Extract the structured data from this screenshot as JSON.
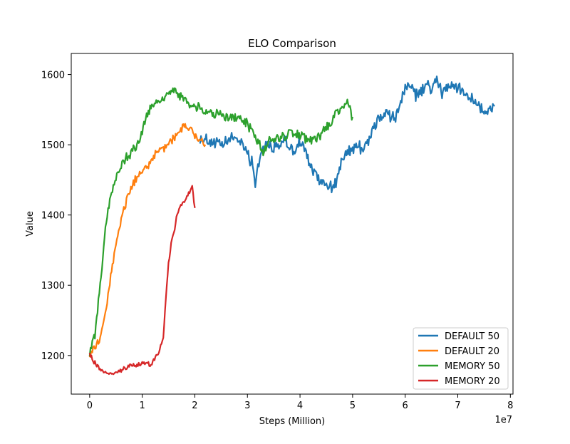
{
  "chart_data": {
    "type": "line",
    "title": "ELO Comparison",
    "xlabel": "Steps (Million)",
    "ylabel": "Value",
    "x_offset_label": "1e7",
    "xlim": [
      -0.35,
      8.05
    ],
    "ylim": [
      1145,
      1630
    ],
    "xticks": [
      0,
      1,
      2,
      3,
      4,
      5,
      6,
      7,
      8
    ],
    "yticks": [
      1200,
      1300,
      1400,
      1500,
      1600
    ],
    "grid": false,
    "legend_position": "lower-right",
    "series": [
      {
        "name": "DEFAULT 50",
        "color": "#1f77b4",
        "points": [
          [
            2.1,
            1510
          ],
          [
            2.3,
            1505
          ],
          [
            2.5,
            1498
          ],
          [
            2.7,
            1510
          ],
          [
            2.9,
            1505
          ],
          [
            3.0,
            1490
          ],
          [
            3.1,
            1470
          ],
          [
            3.15,
            1445
          ],
          [
            3.2,
            1470
          ],
          [
            3.3,
            1500
          ],
          [
            3.5,
            1495
          ],
          [
            3.7,
            1505
          ],
          [
            3.9,
            1490
          ],
          [
            4.0,
            1505
          ],
          [
            4.1,
            1490
          ],
          [
            4.2,
            1470
          ],
          [
            4.3,
            1455
          ],
          [
            4.4,
            1450
          ],
          [
            4.5,
            1445
          ],
          [
            4.6,
            1440
          ],
          [
            4.7,
            1450
          ],
          [
            4.8,
            1475
          ],
          [
            4.9,
            1490
          ],
          [
            5.0,
            1495
          ],
          [
            5.1,
            1500
          ],
          [
            5.2,
            1495
          ],
          [
            5.3,
            1505
          ],
          [
            5.4,
            1525
          ],
          [
            5.5,
            1535
          ],
          [
            5.6,
            1545
          ],
          [
            5.7,
            1540
          ],
          [
            5.8,
            1535
          ],
          [
            5.9,
            1560
          ],
          [
            6.0,
            1580
          ],
          [
            6.1,
            1585
          ],
          [
            6.2,
            1570
          ],
          [
            6.3,
            1575
          ],
          [
            6.4,
            1585
          ],
          [
            6.5,
            1580
          ],
          [
            6.6,
            1590
          ],
          [
            6.7,
            1575
          ],
          [
            6.8,
            1580
          ],
          [
            6.9,
            1585
          ],
          [
            7.0,
            1580
          ],
          [
            7.1,
            1575
          ],
          [
            7.2,
            1570
          ],
          [
            7.3,
            1565
          ],
          [
            7.4,
            1560
          ],
          [
            7.5,
            1545
          ],
          [
            7.6,
            1548
          ],
          [
            7.7,
            1555
          ]
        ]
      },
      {
        "name": "DEFAULT 20",
        "color": "#ff7f0e",
        "points": [
          [
            0.0,
            1200
          ],
          [
            0.1,
            1212
          ],
          [
            0.2,
            1225
          ],
          [
            0.3,
            1260
          ],
          [
            0.4,
            1310
          ],
          [
            0.5,
            1360
          ],
          [
            0.6,
            1395
          ],
          [
            0.7,
            1420
          ],
          [
            0.8,
            1440
          ],
          [
            0.9,
            1455
          ],
          [
            1.0,
            1465
          ],
          [
            1.1,
            1470
          ],
          [
            1.2,
            1480
          ],
          [
            1.3,
            1490
          ],
          [
            1.4,
            1495
          ],
          [
            1.5,
            1500
          ],
          [
            1.6,
            1510
          ],
          [
            1.7,
            1520
          ],
          [
            1.8,
            1528
          ],
          [
            1.9,
            1525
          ],
          [
            2.0,
            1515
          ],
          [
            2.1,
            1505
          ],
          [
            2.2,
            1500
          ]
        ]
      },
      {
        "name": "MEMORY 50",
        "color": "#2ca02c",
        "points": [
          [
            0.0,
            1205
          ],
          [
            0.1,
            1230
          ],
          [
            0.2,
            1300
          ],
          [
            0.3,
            1380
          ],
          [
            0.4,
            1430
          ],
          [
            0.5,
            1455
          ],
          [
            0.6,
            1470
          ],
          [
            0.7,
            1480
          ],
          [
            0.8,
            1490
          ],
          [
            0.9,
            1500
          ],
          [
            1.0,
            1520
          ],
          [
            1.1,
            1545
          ],
          [
            1.2,
            1555
          ],
          [
            1.3,
            1560
          ],
          [
            1.4,
            1565
          ],
          [
            1.5,
            1572
          ],
          [
            1.6,
            1580
          ],
          [
            1.7,
            1570
          ],
          [
            1.8,
            1565
          ],
          [
            1.9,
            1558
          ],
          [
            2.0,
            1555
          ],
          [
            2.1,
            1550
          ],
          [
            2.2,
            1545
          ],
          [
            2.4,
            1545
          ],
          [
            2.6,
            1540
          ],
          [
            2.8,
            1538
          ],
          [
            3.0,
            1530
          ],
          [
            3.2,
            1505
          ],
          [
            3.3,
            1490
          ],
          [
            3.4,
            1505
          ],
          [
            3.6,
            1510
          ],
          [
            3.8,
            1515
          ],
          [
            4.0,
            1515
          ],
          [
            4.2,
            1505
          ],
          [
            4.4,
            1515
          ],
          [
            4.6,
            1530
          ],
          [
            4.7,
            1545
          ],
          [
            4.8,
            1555
          ],
          [
            4.9,
            1560
          ],
          [
            5.0,
            1540
          ]
        ]
      },
      {
        "name": "MEMORY 20",
        "color": "#d62728",
        "points": [
          [
            0.0,
            1205
          ],
          [
            0.05,
            1192
          ],
          [
            0.15,
            1185
          ],
          [
            0.25,
            1178
          ],
          [
            0.35,
            1172
          ],
          [
            0.5,
            1175
          ],
          [
            0.6,
            1180
          ],
          [
            0.7,
            1183
          ],
          [
            0.8,
            1185
          ],
          [
            0.9,
            1186
          ],
          [
            1.0,
            1188
          ],
          [
            1.1,
            1190
          ],
          [
            1.15,
            1183
          ],
          [
            1.2,
            1192
          ],
          [
            1.3,
            1200
          ],
          [
            1.35,
            1215
          ],
          [
            1.4,
            1225
          ],
          [
            1.45,
            1280
          ],
          [
            1.5,
            1330
          ],
          [
            1.55,
            1360
          ],
          [
            1.6,
            1375
          ],
          [
            1.65,
            1395
          ],
          [
            1.7,
            1410
          ],
          [
            1.8,
            1420
          ],
          [
            1.9,
            1432
          ],
          [
            1.95,
            1440
          ],
          [
            2.0,
            1410
          ]
        ]
      }
    ]
  }
}
